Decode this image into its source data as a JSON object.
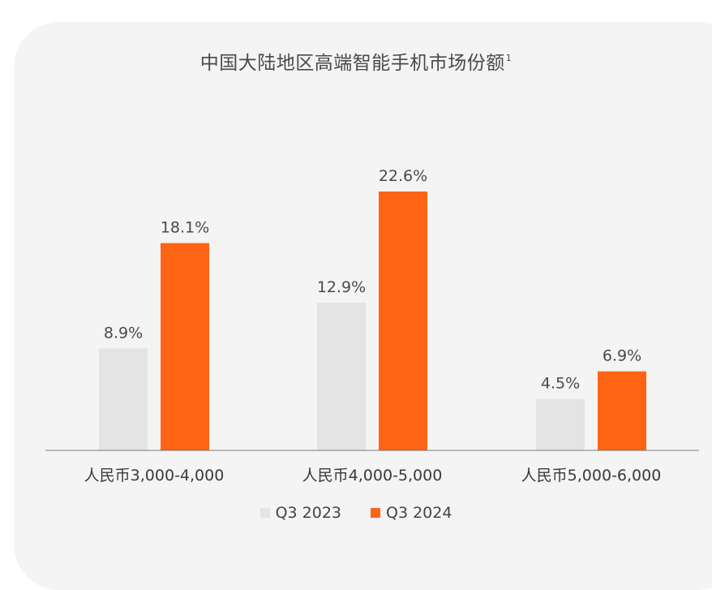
{
  "title": "中国大陆地区高端智能手机市场份额",
  "title_footnote": "1",
  "colors": {
    "series_q3_2023": "#e4e4e4",
    "series_q3_2024": "#ff6314",
    "label_text": "#4a4a4a",
    "axis": "#7a7a7a"
  },
  "chart_data": {
    "type": "bar",
    "categories": [
      "人民币3,000-4,000",
      "人民币4,000-5,000",
      "人民币5,000-6,000"
    ],
    "series": [
      {
        "name": "Q3 2023",
        "values": [
          8.9,
          12.9,
          4.5
        ],
        "labels": [
          "8.9%",
          "12.9%",
          "4.5%"
        ]
      },
      {
        "name": "Q3 2024",
        "values": [
          18.1,
          22.6,
          6.9
        ],
        "labels": [
          "18.1%",
          "22.6%",
          "6.9%"
        ]
      }
    ],
    "unit": "%",
    "ylim": [
      0,
      22.6
    ],
    "grid": false,
    "legend": "bottom-center"
  }
}
